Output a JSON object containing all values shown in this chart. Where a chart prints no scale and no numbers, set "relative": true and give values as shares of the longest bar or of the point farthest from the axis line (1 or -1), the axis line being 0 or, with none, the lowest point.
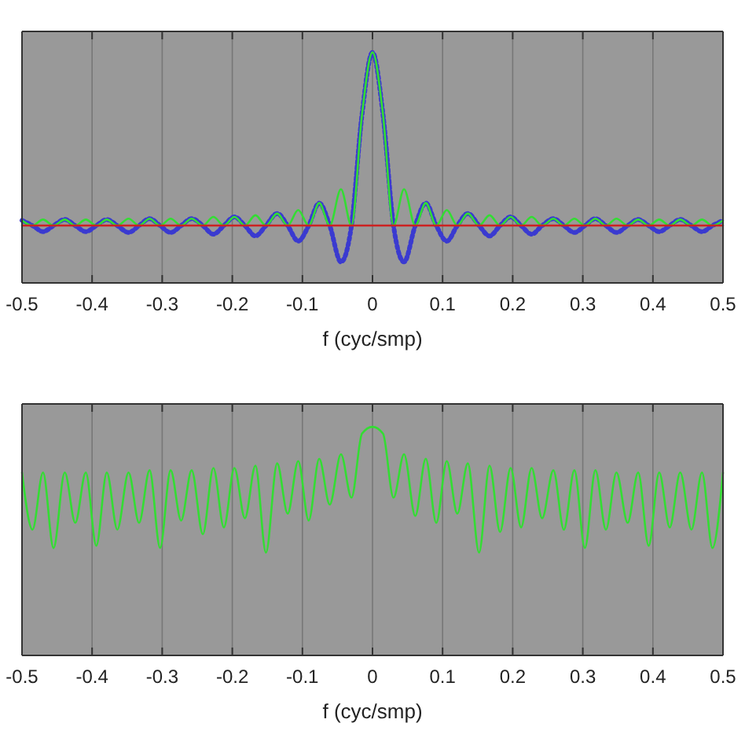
{
  "chart_data": [
    {
      "type": "line",
      "relative": true,
      "xlabel": "f (cyc/smp)",
      "xlim": [
        -0.5,
        0.5
      ],
      "xticks": [
        -0.5,
        -0.4,
        -0.3,
        -0.2,
        -0.1,
        0,
        0.1,
        0.2,
        0.3,
        0.4,
        0.5
      ],
      "grid": "x",
      "x": [
        -0.5,
        -0.485,
        -0.47,
        -0.455,
        -0.439,
        -0.424,
        -0.409,
        -0.394,
        -0.379,
        -0.364,
        -0.348,
        -0.333,
        -0.318,
        -0.303,
        -0.288,
        -0.273,
        -0.258,
        -0.242,
        -0.227,
        -0.212,
        -0.197,
        -0.182,
        -0.167,
        -0.152,
        -0.136,
        -0.121,
        -0.106,
        -0.091,
        -0.076,
        -0.061,
        -0.045,
        -0.03,
        -0.015,
        0,
        0.015,
        0.03,
        0.045,
        0.061,
        0.076,
        0.091,
        0.106,
        0.121,
        0.136,
        0.152,
        0.167,
        0.182,
        0.197,
        0.212,
        0.227,
        0.242,
        0.258,
        0.273,
        0.288,
        0.303,
        0.318,
        0.333,
        0.348,
        0.364,
        0.379,
        0.394,
        0.409,
        0.424,
        0.439,
        0.455,
        0.47,
        0.485,
        0.5
      ],
      "series": [
        {
          "color": "#3a3ad0",
          "line_style": "dotted",
          "values": [
            0.03,
            0,
            -0.035,
            0,
            0.035,
            0,
            -0.035,
            0,
            0.035,
            0,
            -0.04,
            0,
            0.04,
            0,
            -0.04,
            0,
            0.04,
            0,
            -0.05,
            0,
            0.05,
            0,
            -0.06,
            0,
            0.07,
            0,
            -0.09,
            0,
            0.13,
            0,
            -0.21,
            0,
            0.64,
            1,
            0.64,
            0,
            -0.21,
            0,
            0.13,
            0,
            -0.09,
            0,
            0.07,
            0,
            -0.06,
            0,
            0.05,
            0,
            -0.05,
            0,
            0.04,
            0,
            -0.04,
            0,
            0.04,
            0,
            -0.04,
            0,
            0.035,
            0,
            -0.035,
            0,
            0.035,
            0,
            -0.035,
            0,
            0.03
          ]
        },
        {
          "color": "#33dd33",
          "line_style": "solid",
          "values": [
            0.03,
            0,
            0.035,
            0,
            0.035,
            0,
            0.035,
            0,
            0.035,
            0,
            0.04,
            0,
            0.04,
            0,
            0.04,
            0,
            0.04,
            0,
            0.05,
            0,
            0.05,
            0,
            0.06,
            0,
            0.07,
            0,
            0.09,
            0,
            0.13,
            0,
            0.21,
            0,
            0.64,
            1,
            0.64,
            0,
            0.21,
            0,
            0.13,
            0,
            0.09,
            0,
            0.07,
            0,
            0.06,
            0,
            0.05,
            0,
            0.05,
            0,
            0.04,
            0,
            0.04,
            0,
            0.04,
            0,
            0.04,
            0,
            0.035,
            0,
            0.035,
            0,
            0.035,
            0,
            0.035,
            0,
            0.03
          ]
        },
        {
          "color": "#cc2222",
          "line_style": "solid",
          "x": [
            -0.5,
            0.5
          ],
          "values": [
            0,
            0
          ]
        }
      ]
    },
    {
      "type": "line",
      "relative": true,
      "xlabel": "f (cyc/smp)",
      "xlim": [
        -0.5,
        0.5
      ],
      "xticks": [
        -0.5,
        -0.4,
        -0.3,
        -0.2,
        -0.1,
        0,
        0.1,
        0.2,
        0.3,
        0.4,
        0.5
      ],
      "grid": "x",
      "x": [
        -0.5,
        -0.485,
        -0.47,
        -0.455,
        -0.439,
        -0.424,
        -0.409,
        -0.394,
        -0.379,
        -0.364,
        -0.348,
        -0.333,
        -0.318,
        -0.303,
        -0.288,
        -0.273,
        -0.258,
        -0.242,
        -0.227,
        -0.212,
        -0.197,
        -0.182,
        -0.167,
        -0.152,
        -0.136,
        -0.121,
        -0.106,
        -0.091,
        -0.076,
        -0.061,
        -0.045,
        -0.03,
        -0.015,
        0,
        0.015,
        0.03,
        0.045,
        0.061,
        0.076,
        0.091,
        0.106,
        0.121,
        0.136,
        0.152,
        0.167,
        0.182,
        0.197,
        0.212,
        0.227,
        0.242,
        0.258,
        0.273,
        0.288,
        0.303,
        0.318,
        0.333,
        0.348,
        0.364,
        0.379,
        0.394,
        0.409,
        0.424,
        0.439,
        0.455,
        0.47,
        0.485,
        0.5
      ],
      "series": [
        {
          "color": "#33dd33",
          "line_style": "solid",
          "values": [
            0.8,
            0.55,
            0.8,
            0.47,
            0.8,
            0.58,
            0.8,
            0.48,
            0.8,
            0.55,
            0.8,
            0.58,
            0.81,
            0.47,
            0.81,
            0.59,
            0.81,
            0.53,
            0.82,
            0.56,
            0.82,
            0.6,
            0.83,
            0.45,
            0.84,
            0.62,
            0.85,
            0.59,
            0.86,
            0.66,
            0.88,
            0.69,
            0.97,
            1,
            0.97,
            0.69,
            0.88,
            0.61,
            0.86,
            0.58,
            0.85,
            0.62,
            0.84,
            0.45,
            0.83,
            0.54,
            0.82,
            0.56,
            0.82,
            0.6,
            0.81,
            0.55,
            0.81,
            0.47,
            0.81,
            0.55,
            0.8,
            0.58,
            0.8,
            0.48,
            0.8,
            0.56,
            0.8,
            0.55,
            0.8,
            0.47,
            0.8
          ]
        }
      ]
    }
  ]
}
